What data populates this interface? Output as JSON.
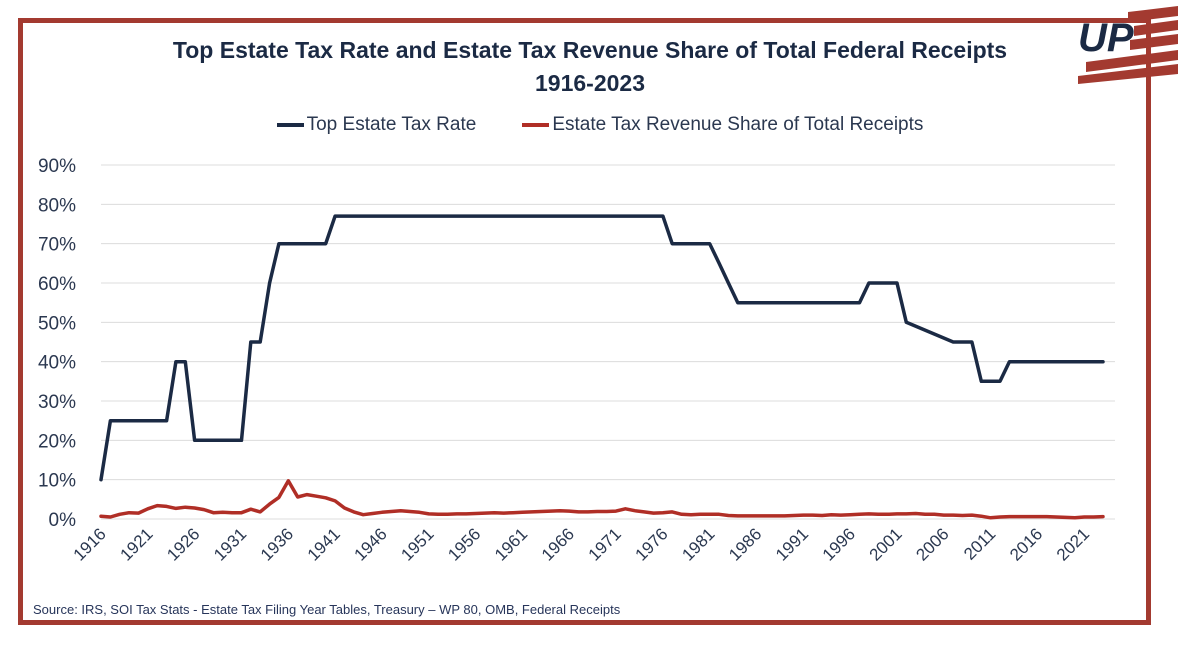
{
  "chart_data": {
    "type": "line",
    "title_line1": "Top Estate Tax Rate and Estate Tax Revenue Share of Total Federal Receipts",
    "title_line2": "1916-2023",
    "xlabel": "",
    "ylabel": "",
    "xlim": [
      1916,
      2023
    ],
    "ylim": [
      0,
      90
    ],
    "yticks": [
      0,
      10,
      20,
      30,
      40,
      50,
      60,
      70,
      80,
      90
    ],
    "ytick_labels": [
      "0%",
      "10%",
      "20%",
      "30%",
      "40%",
      "50%",
      "60%",
      "70%",
      "80%",
      "90%"
    ],
    "xticks": [
      1916,
      1921,
      1926,
      1931,
      1936,
      1941,
      1946,
      1951,
      1956,
      1961,
      1966,
      1971,
      1976,
      1981,
      1986,
      1991,
      1996,
      2001,
      2006,
      2011,
      2016,
      2021
    ],
    "xtick_labels": [
      "1916",
      "1921",
      "1926",
      "1931",
      "1936",
      "1941",
      "1946",
      "1951",
      "1956",
      "1961",
      "1966",
      "1971",
      "1976",
      "1981",
      "1986",
      "1991",
      "1996",
      "2001",
      "2006",
      "2011",
      "2016",
      "2021"
    ],
    "grid": "horizontal",
    "legend_position": "top-center",
    "series": [
      {
        "name": "Top Estate Tax Rate",
        "color": "#1b2a44",
        "points": [
          [
            1916,
            10
          ],
          [
            1917,
            25
          ],
          [
            1923,
            25
          ],
          [
            1924,
            40
          ],
          [
            1925,
            40
          ],
          [
            1926,
            20
          ],
          [
            1931,
            20
          ],
          [
            1932,
            45
          ],
          [
            1933,
            45
          ],
          [
            1934,
            60
          ],
          [
            1935,
            70
          ],
          [
            1940,
            70
          ],
          [
            1941,
            77
          ],
          [
            1976,
            77
          ],
          [
            1977,
            70
          ],
          [
            1981,
            70
          ],
          [
            1982,
            65
          ],
          [
            1983,
            60
          ],
          [
            1984,
            55
          ],
          [
            1997,
            55
          ],
          [
            1998,
            60
          ],
          [
            2001,
            60
          ],
          [
            2002,
            50
          ],
          [
            2007,
            45
          ],
          [
            2009,
            45
          ],
          [
            2010,
            35
          ],
          [
            2011,
            35
          ],
          [
            2012,
            35
          ],
          [
            2013,
            40
          ],
          [
            2023,
            40
          ]
        ]
      },
      {
        "name": "Estate Tax Revenue Share of Total Receipts",
        "color": "#b02e26",
        "points": [
          [
            1916,
            0.7
          ],
          [
            1917,
            0.5
          ],
          [
            1918,
            1.2
          ],
          [
            1919,
            1.6
          ],
          [
            1920,
            1.5
          ],
          [
            1921,
            2.6
          ],
          [
            1922,
            3.4
          ],
          [
            1923,
            3.2
          ],
          [
            1924,
            2.7
          ],
          [
            1925,
            3.0
          ],
          [
            1926,
            2.8
          ],
          [
            1927,
            2.4
          ],
          [
            1928,
            1.6
          ],
          [
            1929,
            1.7
          ],
          [
            1930,
            1.6
          ],
          [
            1931,
            1.6
          ],
          [
            1932,
            2.5
          ],
          [
            1933,
            1.8
          ],
          [
            1934,
            3.8
          ],
          [
            1935,
            5.5
          ],
          [
            1936,
            9.7
          ],
          [
            1937,
            5.6
          ],
          [
            1938,
            6.2
          ],
          [
            1939,
            5.8
          ],
          [
            1940,
            5.4
          ],
          [
            1941,
            4.6
          ],
          [
            1942,
            2.8
          ],
          [
            1943,
            1.8
          ],
          [
            1944,
            1.1
          ],
          [
            1945,
            1.4
          ],
          [
            1946,
            1.7
          ],
          [
            1947,
            1.9
          ],
          [
            1948,
            2.1
          ],
          [
            1949,
            1.9
          ],
          [
            1950,
            1.7
          ],
          [
            1951,
            1.3
          ],
          [
            1952,
            1.2
          ],
          [
            1953,
            1.2
          ],
          [
            1954,
            1.3
          ],
          [
            1955,
            1.3
          ],
          [
            1956,
            1.4
          ],
          [
            1957,
            1.5
          ],
          [
            1958,
            1.6
          ],
          [
            1959,
            1.5
          ],
          [
            1960,
            1.6
          ],
          [
            1961,
            1.7
          ],
          [
            1962,
            1.8
          ],
          [
            1963,
            1.9
          ],
          [
            1964,
            2.0
          ],
          [
            1965,
            2.1
          ],
          [
            1966,
            2.0
          ],
          [
            1967,
            1.8
          ],
          [
            1968,
            1.8
          ],
          [
            1969,
            1.9
          ],
          [
            1970,
            1.9
          ],
          [
            1971,
            2.0
          ],
          [
            1972,
            2.6
          ],
          [
            1973,
            2.1
          ],
          [
            1974,
            1.8
          ],
          [
            1975,
            1.5
          ],
          [
            1976,
            1.6
          ],
          [
            1977,
            1.8
          ],
          [
            1978,
            1.2
          ],
          [
            1979,
            1.1
          ],
          [
            1980,
            1.2
          ],
          [
            1981,
            1.2
          ],
          [
            1982,
            1.2
          ],
          [
            1983,
            0.9
          ],
          [
            1984,
            0.8
          ],
          [
            1985,
            0.8
          ],
          [
            1986,
            0.8
          ],
          [
            1987,
            0.8
          ],
          [
            1988,
            0.8
          ],
          [
            1989,
            0.8
          ],
          [
            1990,
            0.9
          ],
          [
            1991,
            1.0
          ],
          [
            1992,
            1.0
          ],
          [
            1993,
            0.9
          ],
          [
            1994,
            1.1
          ],
          [
            1995,
            1.0
          ],
          [
            1996,
            1.1
          ],
          [
            1997,
            1.2
          ],
          [
            1998,
            1.3
          ],
          [
            1999,
            1.2
          ],
          [
            2000,
            1.2
          ],
          [
            2001,
            1.3
          ],
          [
            2002,
            1.3
          ],
          [
            2003,
            1.4
          ],
          [
            2004,
            1.2
          ],
          [
            2005,
            1.2
          ],
          [
            2006,
            1.0
          ],
          [
            2007,
            1.0
          ],
          [
            2008,
            0.9
          ],
          [
            2009,
            1.0
          ],
          [
            2010,
            0.7
          ],
          [
            2011,
            0.3
          ],
          [
            2012,
            0.5
          ],
          [
            2013,
            0.6
          ],
          [
            2014,
            0.6
          ],
          [
            2015,
            0.6
          ],
          [
            2016,
            0.6
          ],
          [
            2017,
            0.6
          ],
          [
            2018,
            0.5
          ],
          [
            2019,
            0.4
          ],
          [
            2020,
            0.3
          ],
          [
            2021,
            0.5
          ],
          [
            2022,
            0.5
          ],
          [
            2023,
            0.6
          ]
        ]
      }
    ]
  },
  "source_text": "Source: IRS, SOI Tax Stats - Estate Tax Filing Year Tables, Treasury – WP 80, OMB, Federal Receipts",
  "logo": {
    "text": "UP",
    "colors": {
      "navy": "#1b2a44",
      "red": "#a33a30"
    }
  }
}
